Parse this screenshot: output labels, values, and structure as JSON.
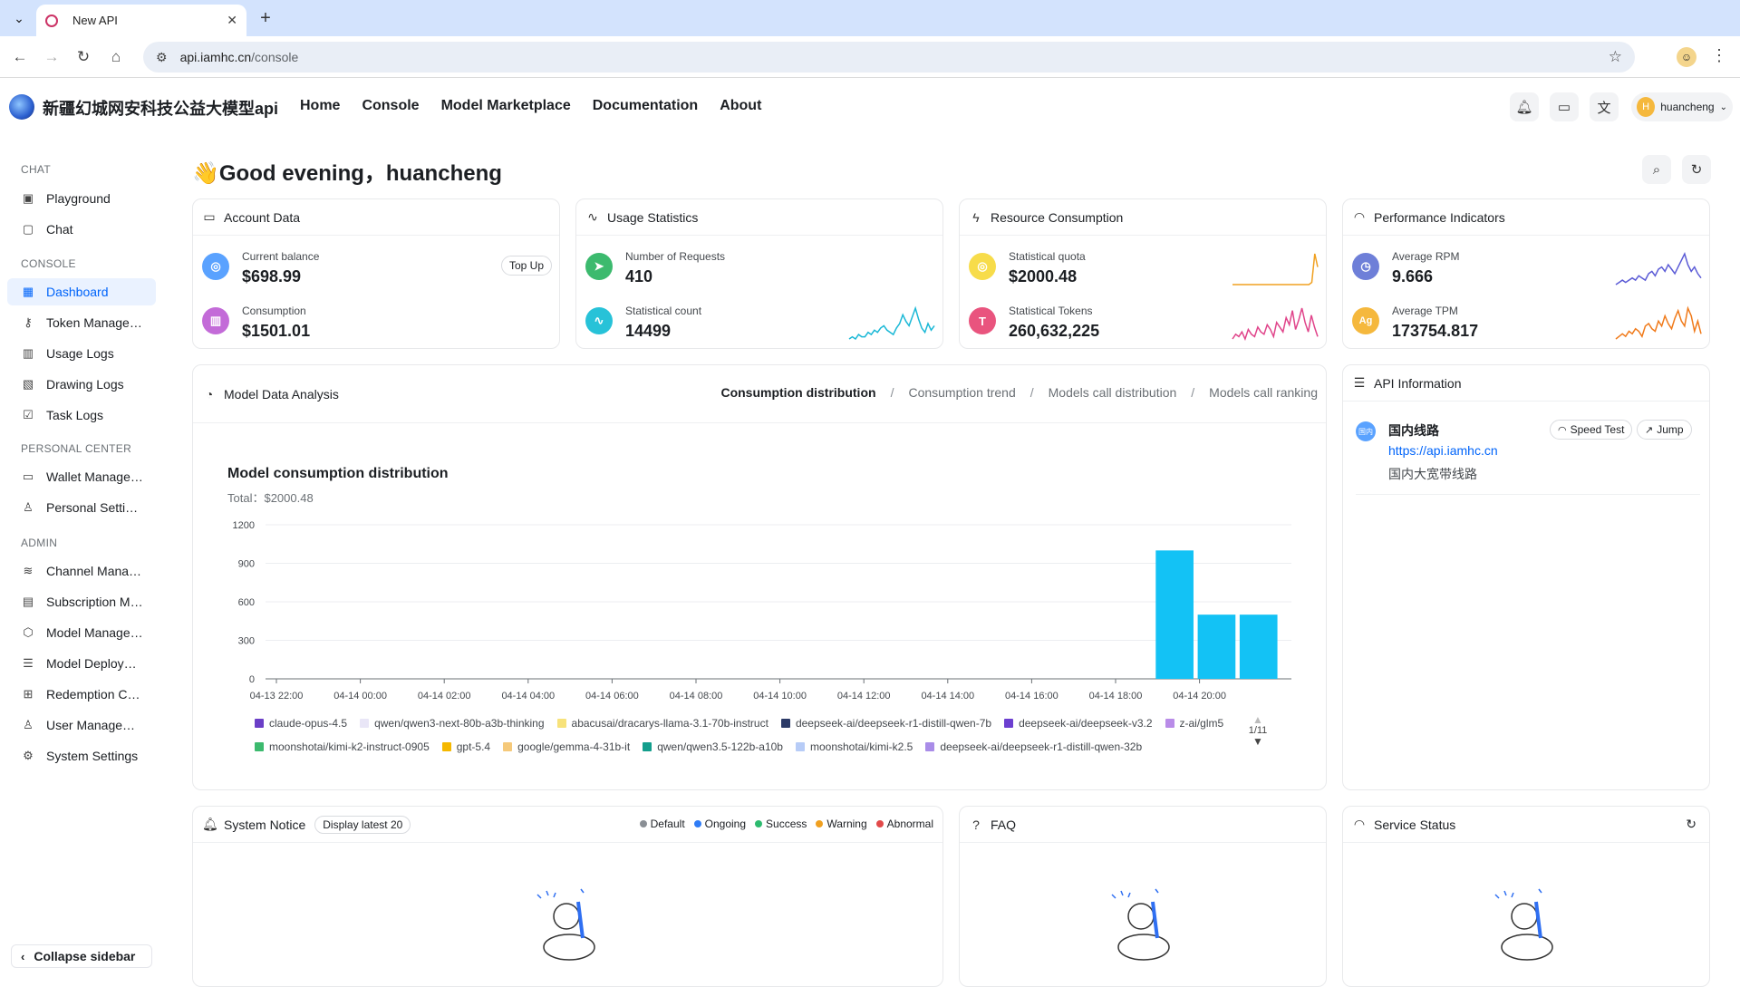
{
  "browser": {
    "tab_title": "New API",
    "url_host": "api.iamhc.cn",
    "url_path": "/console"
  },
  "header": {
    "brand": "新疆幻城网安科技公益大模型api",
    "nav": [
      "Home",
      "Console",
      "Model Marketplace",
      "Documentation",
      "About"
    ],
    "user_initial": "H",
    "username": "huancheng"
  },
  "sidebar": {
    "sections": {
      "chat": "CHAT",
      "console": "CONSOLE",
      "personal": "PERSONAL CENTER",
      "admin": "ADMIN"
    },
    "items": [
      {
        "label": "Playground",
        "icon": "playground-icon"
      },
      {
        "label": "Chat",
        "icon": "chat-icon"
      },
      {
        "label": "Dashboard",
        "icon": "dashboard-icon",
        "active": true
      },
      {
        "label": "Token Manage…",
        "icon": "key-icon"
      },
      {
        "label": "Usage Logs",
        "icon": "bar-chart-icon"
      },
      {
        "label": "Drawing Logs",
        "icon": "image-icon"
      },
      {
        "label": "Task Logs",
        "icon": "checkbox-icon"
      },
      {
        "label": "Wallet Manage…",
        "icon": "wallet-icon"
      },
      {
        "label": "Personal Setti…",
        "icon": "user-icon"
      },
      {
        "label": "Channel Mana…",
        "icon": "layers-icon"
      },
      {
        "label": "Subscription M…",
        "icon": "calendar-clock-icon"
      },
      {
        "label": "Model Manage…",
        "icon": "cube-icon"
      },
      {
        "label": "Model Deploy…",
        "icon": "server-icon"
      },
      {
        "label": "Redemption C…",
        "icon": "gift-icon"
      },
      {
        "label": "User Manage…",
        "icon": "user-icon"
      },
      {
        "label": "System Settings",
        "icon": "gear-icon"
      }
    ],
    "collapse_label": "Collapse sidebar"
  },
  "greeting": "👋Good evening，huancheng",
  "cards": {
    "account": {
      "title": "Account Data",
      "balance_label": "Current balance",
      "balance_value": "$698.99",
      "topup": "Top Up",
      "consumption_label": "Consumption",
      "consumption_value": "$1501.01"
    },
    "usage": {
      "title": "Usage Statistics",
      "requests_label": "Number of Requests",
      "requests_value": "410",
      "count_label": "Statistical count",
      "count_value": "14499"
    },
    "resource": {
      "title": "Resource Consumption",
      "quota_label": "Statistical quota",
      "quota_value": "$2000.48",
      "tokens_label": "Statistical Tokens",
      "tokens_value": "260,632,225"
    },
    "performance": {
      "title": "Performance Indicators",
      "rpm_label": "Average RPM",
      "rpm_value": "9.666",
      "tpm_label": "Average TPM",
      "tpm_value": "173754.817",
      "tpm_badge": "Ag"
    }
  },
  "sparklines": {
    "statistical_count": [
      3,
      4,
      3,
      5,
      4,
      4,
      6,
      5,
      7,
      6,
      8,
      9,
      7,
      6,
      5,
      8,
      10,
      14,
      11,
      9,
      13,
      17,
      12,
      8,
      6,
      10,
      7,
      9
    ],
    "statistical_quota": [
      2,
      2,
      2,
      2,
      2,
      2,
      2,
      2,
      2,
      2,
      2,
      2,
      2,
      2,
      2,
      2,
      2,
      2,
      2,
      2,
      2,
      2,
      2,
      2,
      2,
      2,
      2,
      3,
      16,
      10
    ],
    "statistical_tokens": [
      3,
      5,
      4,
      6,
      3,
      7,
      5,
      4,
      8,
      6,
      5,
      9,
      7,
      4,
      10,
      8,
      6,
      12,
      9,
      15,
      7,
      11,
      16,
      10,
      6,
      13,
      8,
      4
    ],
    "average_rpm": [
      4,
      5,
      6,
      5,
      6,
      7,
      6,
      8,
      7,
      6,
      9,
      10,
      8,
      11,
      12,
      10,
      13,
      11,
      9,
      12,
      15,
      18,
      13,
      10,
      12,
      9,
      7
    ],
    "average_tpm": [
      3,
      4,
      5,
      4,
      6,
      5,
      7,
      6,
      4,
      8,
      9,
      7,
      6,
      10,
      8,
      12,
      9,
      7,
      11,
      14,
      10,
      8,
      15,
      12,
      6,
      10,
      5
    ]
  },
  "analysis": {
    "title": "Model Data Analysis",
    "tabs": [
      "Consumption distribution",
      "Consumption trend",
      "Models call distribution",
      "Models call ranking"
    ],
    "active_tab": 0
  },
  "chart_data": {
    "type": "bar",
    "title": "Model consumption distribution",
    "subtitle": "Total：$2000.48",
    "x_ticks": [
      "04-13 22:00",
      "04-14 00:00",
      "04-14 02:00",
      "04-14 04:00",
      "04-14 06:00",
      "04-14 08:00",
      "04-14 10:00",
      "04-14 12:00",
      "04-14 14:00",
      "04-14 16:00",
      "04-14 18:00",
      "04-14 20:00"
    ],
    "y_ticks": [
      0,
      300,
      600,
      900,
      1200
    ],
    "ylim": [
      0,
      1200
    ],
    "bars": [
      {
        "x": "04-14 19:00",
        "value": 1000,
        "color": "#13c2f5"
      },
      {
        "x": "04-14 20:00",
        "value": 500,
        "color": "#13c2f5"
      },
      {
        "x": "04-14 21:00",
        "value": 500,
        "color": "#13c2f5"
      }
    ],
    "legend": [
      {
        "name": "claude-opus-4.5",
        "color": "#6b3fc7"
      },
      {
        "name": "qwen/qwen3-next-80b-a3b-thinking",
        "color": "#e9e6f7"
      },
      {
        "name": "abacusai/dracarys-llama-3.1-70b-instruct",
        "color": "#f7e27a"
      },
      {
        "name": "deepseek-ai/deepseek-r1-distill-qwen-7b",
        "color": "#2b3a67"
      },
      {
        "name": "deepseek-ai/deepseek-v3.2",
        "color": "#6c3fd0"
      },
      {
        "name": "z-ai/glm5",
        "color": "#b98ce8"
      },
      {
        "name": "moonshotai/kimi-k2-instruct-0905",
        "color": "#3cba6e"
      },
      {
        "name": "gpt-5.4",
        "color": "#f5b800"
      },
      {
        "name": "google/gemma-4-31b-it",
        "color": "#f5c97a"
      },
      {
        "name": "qwen/qwen3.5-122b-a10b",
        "color": "#139e8c"
      },
      {
        "name": "moonshotai/kimi-k2.5",
        "color": "#b7ccf7"
      },
      {
        "name": "deepseek-ai/deepseek-r1-distill-qwen-32b",
        "color": "#a98ce8"
      }
    ],
    "legend_page": "1/11"
  },
  "api_info": {
    "title": "API Information",
    "badge": "国内",
    "name": "国内线路",
    "url": "https://api.iamhc.cn",
    "desc": "国内大宽带线路",
    "speed_test": "Speed Test",
    "jump": "Jump"
  },
  "notice": {
    "title": "System Notice",
    "display_latest": "Display latest 20",
    "statuses": [
      {
        "label": "Default",
        "color": "#8a8f95"
      },
      {
        "label": "Ongoing",
        "color": "#2f7cf6"
      },
      {
        "label": "Success",
        "color": "#2dbb6f"
      },
      {
        "label": "Warning",
        "color": "#f0a020"
      },
      {
        "label": "Abnormal",
        "color": "#e24a4a"
      }
    ]
  },
  "faq": {
    "title": "FAQ"
  },
  "service_status": {
    "title": "Service Status"
  }
}
